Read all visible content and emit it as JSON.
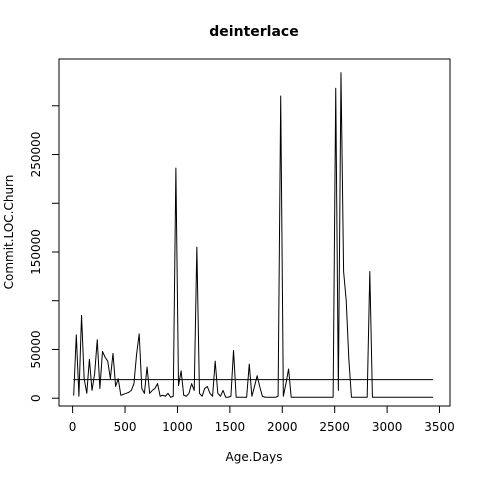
{
  "chart_data": {
    "type": "line",
    "title": "deinterlace",
    "xlabel": "Age.Days",
    "ylabel": "Commit.LOC.Churn",
    "xlim": [
      -130,
      3600
    ],
    "ylim": [
      -8000,
      348000
    ],
    "x_ticks": [
      0,
      500,
      1000,
      1500,
      2000,
      2500,
      3000,
      3500
    ],
    "x_tick_labels": [
      "0",
      "500",
      "1000",
      "1500",
      "2000",
      "2500",
      "3000",
      "3500"
    ],
    "y_ticks": [
      0,
      50000,
      100000,
      150000,
      200000,
      250000,
      300000
    ],
    "y_tick_labels": [
      "0",
      "50000",
      "",
      "150000",
      "",
      "250000",
      ""
    ],
    "grid": false,
    "legend": "none",
    "line_color": "#000000",
    "series": [
      {
        "x": [
          10,
          35,
          60,
          85,
          110,
          135,
          160,
          185,
          210,
          235,
          260,
          285,
          310,
          335,
          360,
          385,
          410,
          435,
          460,
          485,
          510,
          535,
          560,
          585,
          610,
          635,
          660,
          685,
          710,
          735,
          760,
          785,
          810,
          835,
          860,
          885,
          910,
          935,
          960,
          985,
          1010,
          1035,
          1060,
          1085,
          1110,
          1135,
          1160,
          1185,
          1210,
          1235,
          1260,
          1285,
          1310,
          1335,
          1360,
          1385,
          1410,
          1435,
          1460,
          1485,
          1510,
          1535,
          1560,
          1585,
          1610,
          1635,
          1660,
          1685,
          1710,
          1735,
          1760,
          1785,
          1810,
          1835,
          1860,
          1885,
          1910,
          1935,
          1960,
          1985,
          2010,
          2035,
          2060,
          2085,
          2110,
          2135,
          2160,
          2185,
          2210,
          2235,
          2260,
          2285,
          2310,
          2335,
          2360,
          2385,
          2410,
          2435,
          2460,
          2485,
          2510,
          2535,
          2560,
          2585,
          2610,
          2635,
          2660,
          2685,
          2710,
          2735,
          2760,
          2785,
          2810,
          2835,
          2860,
          2885,
          2910,
          2935,
          2960,
          2985,
          3010,
          3035,
          3060,
          3085,
          3110,
          3135,
          3160,
          3185,
          3210,
          3235,
          3260,
          3285,
          3310,
          3335,
          3360,
          3385,
          3410,
          3435
        ],
        "y": [
          3000,
          65000,
          2000,
          85000,
          20000,
          5000,
          40000,
          8000,
          25000,
          60000,
          10000,
          48000,
          42000,
          38000,
          20000,
          46000,
          12000,
          20000,
          3000,
          4000,
          5000,
          6000,
          8000,
          15000,
          45000,
          66000,
          10000,
          5000,
          32000,
          5000,
          8000,
          10000,
          15000,
          2000,
          3000,
          2000,
          5000,
          1000,
          2000,
          236000,
          13000,
          28000,
          3000,
          2000,
          5000,
          15000,
          8000,
          155000,
          5000,
          2000,
          10000,
          12000,
          5000,
          2000,
          38000,
          5000,
          2000,
          8000,
          1000,
          1000,
          2000,
          49000,
          1000,
          1000,
          1000,
          1000,
          1000,
          35000,
          2000,
          12000,
          23000,
          12000,
          2000,
          1000,
          1000,
          1000,
          1000,
          1000,
          2000,
          310000,
          2000,
          15000,
          30000,
          1000,
          1000,
          1000,
          1000,
          1000,
          1000,
          1000,
          1000,
          1000,
          1000,
          1000,
          1000,
          1000,
          1000,
          1000,
          1000,
          1000,
          318000,
          8000,
          334000,
          130000,
          100000,
          40000,
          1000,
          1000,
          1000,
          1000,
          1000,
          1000,
          1000,
          130000,
          1000,
          1000,
          1000,
          1000,
          1000,
          1000,
          1000,
          1000,
          1000,
          1000,
          1000,
          1000,
          1000,
          1000,
          1000,
          1000,
          1000,
          1000,
          1000,
          1000,
          1000,
          1000,
          1000,
          1000
        ]
      },
      {
        "x": [
          10,
          3435
        ],
        "y": [
          19000,
          19000
        ]
      }
    ]
  }
}
